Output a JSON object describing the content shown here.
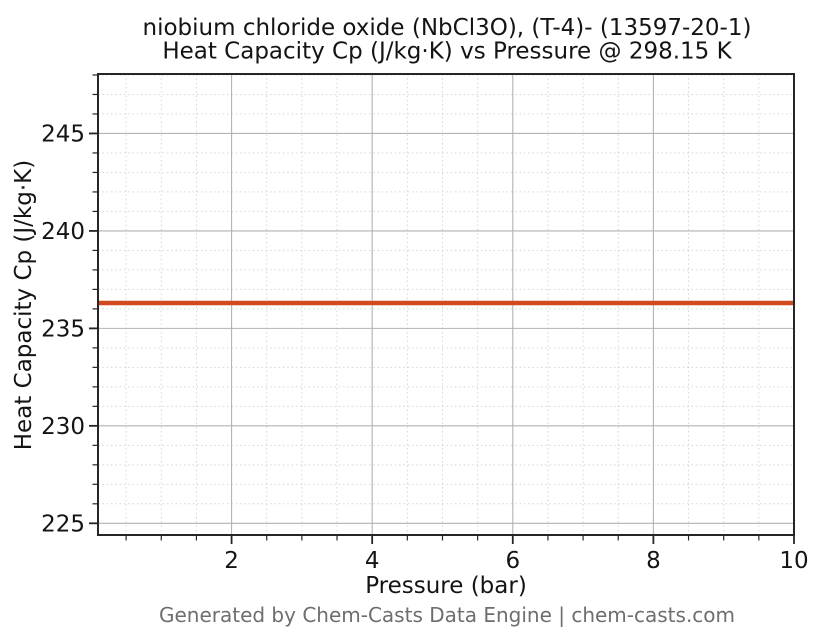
{
  "chart_data": {
    "type": "line",
    "title_lines": [
      "niobium chloride oxide (NbCl3O), (T-4)- (13597-20-1)",
      "Heat Capacity Cp (J/kg·K) vs Pressure @ 298.15 K"
    ],
    "title": "niobium chloride oxide (NbCl3O), (T-4)- (13597-20-1)\nHeat Capacity Cp (J/kg·K) vs Pressure @ 298.15 K",
    "xlabel": "Pressure (bar)",
    "ylabel": "Heat Capacity Cp (J/kg·K)",
    "annotation": "Generated by Chem-Casts Data Engine | chem-casts.com",
    "series": [
      {
        "name": "Heat Capacity Cp",
        "x": [
          0.1,
          10
        ],
        "y": [
          236.3,
          236.3
        ]
      }
    ],
    "xlim": [
      0.1,
      10
    ],
    "ylim": [
      224.4,
      248.05
    ],
    "x_ticks": [
      2,
      4,
      6,
      8,
      10
    ],
    "y_ticks": [
      225,
      230,
      235,
      240,
      245
    ],
    "x_minor_step": 0.5,
    "y_minor_step": 1,
    "grid": {
      "major": true,
      "minor": true
    },
    "legend": false,
    "line_width": 4.5,
    "colors": {
      "line": "#d1491f",
      "spine": "#262626",
      "grid_major": "#b2b2b2",
      "grid_minor": "#d7d7d7",
      "text": "#141414",
      "footer_text": "#6e6e6e",
      "background": "#ffffff"
    }
  }
}
